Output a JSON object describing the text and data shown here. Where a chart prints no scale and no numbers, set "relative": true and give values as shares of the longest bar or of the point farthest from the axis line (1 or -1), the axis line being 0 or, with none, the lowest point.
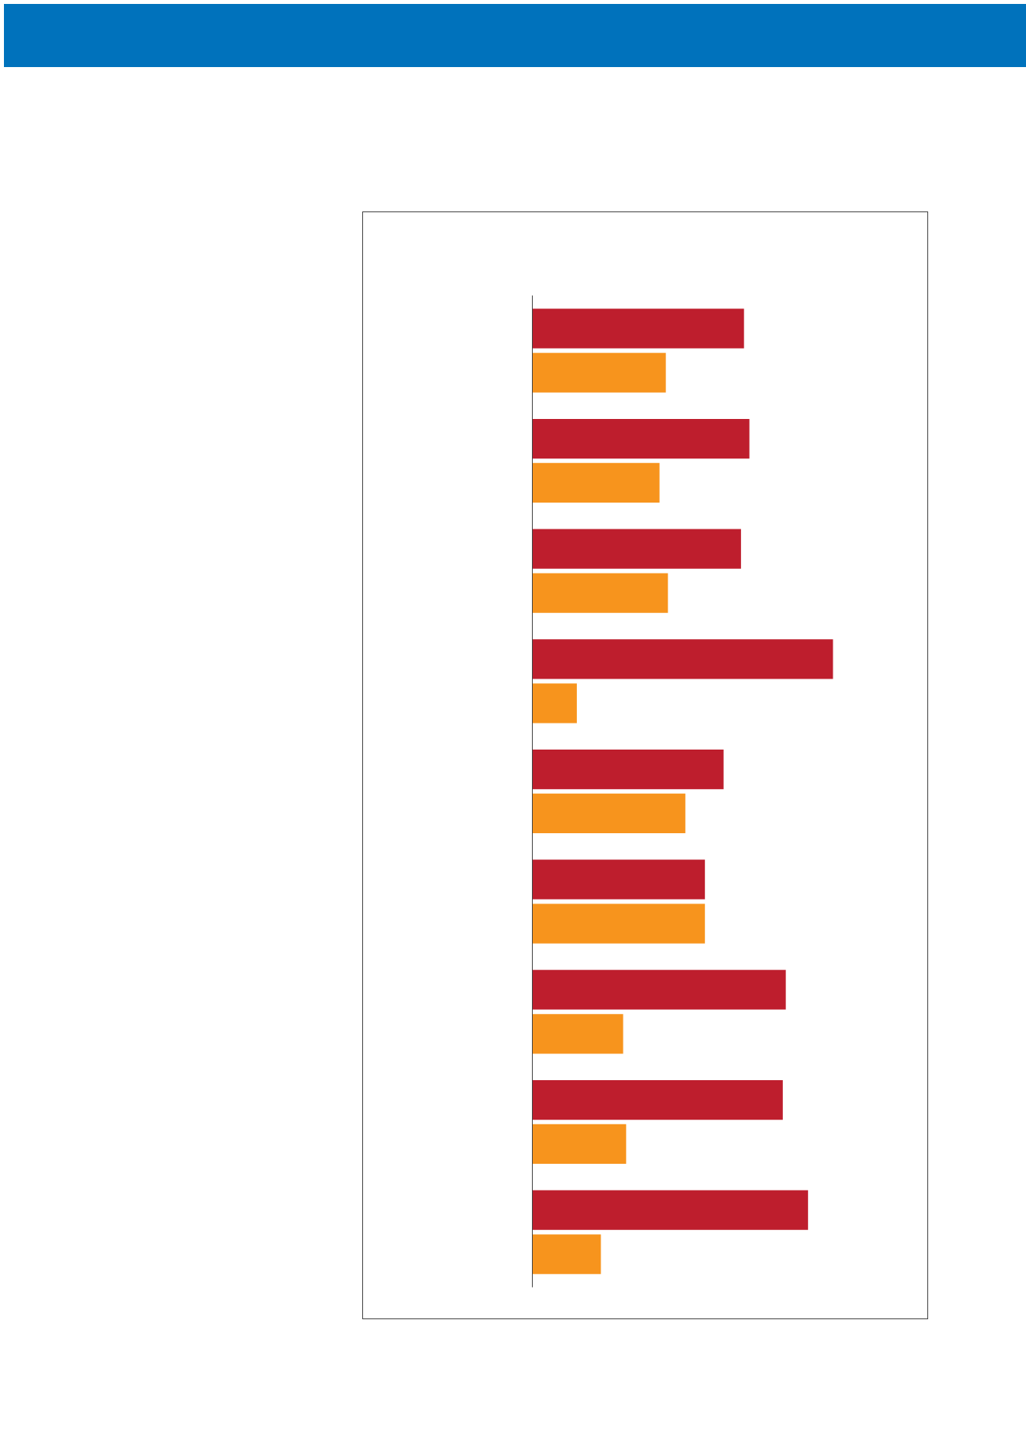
{
  "chart_data": {
    "type": "bar",
    "orientation": "horizontal",
    "relative": true,
    "categories": [
      null,
      null,
      null,
      null,
      null,
      null,
      null,
      null,
      null
    ],
    "series": [
      {
        "color": "#be1e2d",
        "values": [
          0.704,
          0.722,
          0.694,
          1,
          0.636,
          0.574,
          0.843,
          0.833,
          0.917
        ]
      },
      {
        "color": "#f7941d",
        "values": [
          0.444,
          0.423,
          0.451,
          0.148,
          0.509,
          0.574,
          0.302,
          0.312,
          0.228
        ]
      }
    ],
    "grid": false
  }
}
